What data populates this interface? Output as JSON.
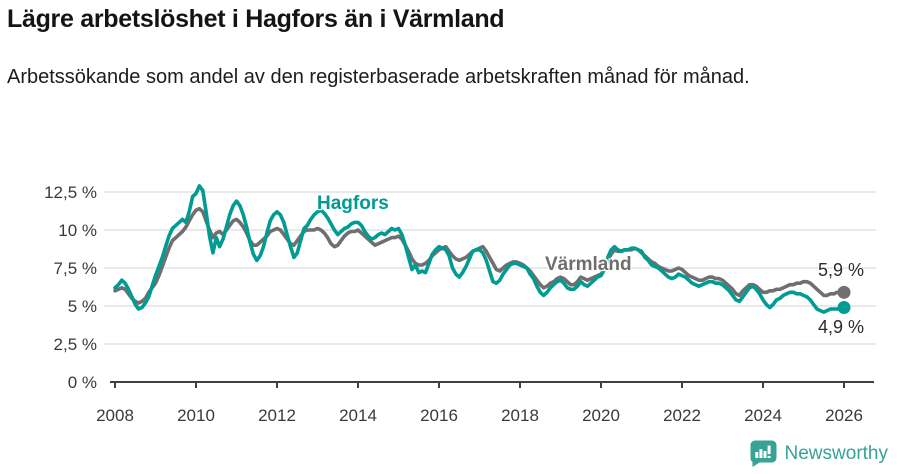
{
  "header": {
    "title": "Lägre arbetslöshet i Hagfors än i Värmland",
    "subtitle": "Arbetssökande som andel av den registerbaserade arbetskraften månad för månad."
  },
  "footer": {
    "brand": "Newsworthy"
  },
  "colors": {
    "hagfors": "#009b92",
    "varmland": "#6f6f6f",
    "grid": "#dcdcdc",
    "axis": "#404040",
    "brand_teal": "#38a294"
  },
  "chart_data": {
    "type": "line",
    "title": "Lägre arbetslöshet i Hagfors än i Värmland",
    "subtitle": "Arbetssökande som andel av den registerbaserade arbetskraften månad för månad.",
    "x_unit": "year-month",
    "x_start": 2008,
    "x_step": 0.08333,
    "xlim": [
      2008,
      2026.7
    ],
    "ylim": [
      0,
      13.5
    ],
    "grid": true,
    "legend_position": "inline-labels",
    "xticks": [
      {
        "value": 2008,
        "label": "2008"
      },
      {
        "value": 2010,
        "label": "2010"
      },
      {
        "value": 2012,
        "label": "2012"
      },
      {
        "value": 2014,
        "label": "2014"
      },
      {
        "value": 2016,
        "label": "2016"
      },
      {
        "value": 2018,
        "label": "2018"
      },
      {
        "value": 2020,
        "label": "2020"
      },
      {
        "value": 2022,
        "label": "2022"
      },
      {
        "value": 2024,
        "label": "2024"
      },
      {
        "value": 2026,
        "label": "2026"
      }
    ],
    "yticks": [
      {
        "value": 0,
        "label": "0 %"
      },
      {
        "value": 2.5,
        "label": "2,5 %"
      },
      {
        "value": 5,
        "label": "5 %"
      },
      {
        "value": 7.5,
        "label": "7,5 %"
      },
      {
        "value": 10,
        "label": "10 %"
      },
      {
        "value": 12.5,
        "label": "12,5 %"
      }
    ],
    "series": [
      {
        "name": "Hagfors",
        "color": "#009b92",
        "end_label": "4,9 %",
        "values": [
          6.2,
          6.4,
          6.7,
          6.5,
          6.1,
          5.6,
          5.1,
          4.8,
          4.9,
          5.2,
          5.6,
          6.3,
          7.0,
          7.6,
          8.2,
          8.9,
          9.6,
          10.1,
          10.3,
          10.5,
          10.7,
          10.5,
          11.2,
          12.2,
          12.4,
          12.9,
          12.6,
          11.2,
          9.6,
          8.5,
          9.5,
          8.9,
          9.4,
          10.2,
          11.0,
          11.6,
          11.9,
          11.6,
          11.0,
          10.2,
          9.2,
          8.4,
          8.0,
          8.3,
          8.9,
          9.8,
          10.6,
          11.0,
          11.2,
          11.0,
          10.5,
          9.7,
          8.9,
          8.2,
          8.5,
          9.3,
          10.1,
          10.3,
          10.7,
          11.0,
          11.2,
          11.3,
          11.1,
          10.8,
          10.4,
          10.0,
          9.7,
          9.9,
          10.1,
          10.2,
          10.4,
          10.5,
          10.5,
          10.3,
          9.9,
          9.6,
          9.4,
          9.5,
          9.7,
          9.8,
          9.7,
          9.9,
          10.1,
          10.0,
          10.1,
          9.7,
          9.0,
          8.2,
          7.4,
          7.7,
          7.2,
          7.3,
          7.2,
          7.8,
          8.4,
          8.7,
          8.9,
          8.8,
          8.7,
          8.3,
          7.5,
          7.1,
          6.9,
          7.2,
          7.6,
          8.1,
          8.6,
          8.7,
          8.7,
          8.5,
          8.0,
          7.3,
          6.6,
          6.5,
          6.7,
          7.1,
          7.4,
          7.7,
          7.8,
          7.8,
          7.7,
          7.6,
          7.5,
          7.1,
          6.8,
          6.3,
          5.9,
          5.7,
          5.9,
          6.2,
          6.4,
          6.6,
          6.7,
          6.5,
          6.2,
          6.1,
          6.1,
          6.3,
          6.6,
          6.4,
          6.3,
          6.5,
          6.7,
          6.9,
          7.0,
          7.4,
          8.2,
          8.7,
          8.9,
          8.7,
          8.6,
          8.7,
          8.7,
          8.8,
          8.8,
          8.7,
          8.6,
          8.2,
          8.0,
          7.7,
          7.6,
          7.5,
          7.3,
          7.1,
          6.9,
          6.8,
          6.9,
          7.1,
          7.0,
          6.9,
          6.7,
          6.5,
          6.4,
          6.3,
          6.4,
          6.5,
          6.6,
          6.6,
          6.5,
          6.5,
          6.4,
          6.2,
          6.0,
          5.7,
          5.4,
          5.3,
          5.6,
          5.9,
          6.2,
          6.3,
          6.1,
          5.8,
          5.4,
          5.1,
          4.9,
          5.1,
          5.4,
          5.5,
          5.7,
          5.8,
          5.9,
          5.9,
          5.8,
          5.8,
          5.7,
          5.6,
          5.4,
          5.1,
          4.8,
          4.7,
          4.6,
          4.7,
          4.8,
          4.8,
          4.8,
          4.8,
          4.9
        ]
      },
      {
        "name": "Värmland",
        "color": "#6f6f6f",
        "end_label": "5,9 %",
        "values": [
          6.0,
          6.1,
          6.2,
          6.1,
          5.8,
          5.5,
          5.3,
          5.2,
          5.3,
          5.5,
          5.9,
          6.2,
          6.5,
          7.0,
          7.6,
          8.2,
          8.8,
          9.3,
          9.5,
          9.7,
          9.9,
          10.2,
          10.6,
          11.0,
          11.3,
          11.4,
          11.2,
          10.6,
          10.0,
          9.5,
          9.8,
          9.9,
          9.7,
          10.0,
          10.3,
          10.6,
          10.7,
          10.5,
          10.2,
          9.8,
          9.3,
          9.0,
          9.0,
          9.2,
          9.4,
          9.6,
          9.9,
          10.0,
          10.1,
          10.0,
          9.7,
          9.4,
          9.1,
          9.0,
          9.3,
          9.6,
          9.9,
          10.0,
          10.0,
          10.0,
          10.1,
          10.0,
          9.8,
          9.5,
          9.1,
          8.9,
          9.0,
          9.3,
          9.6,
          9.8,
          9.9,
          9.9,
          10.0,
          9.8,
          9.6,
          9.4,
          9.2,
          9.0,
          9.1,
          9.2,
          9.3,
          9.4,
          9.5,
          9.5,
          9.6,
          9.4,
          9.0,
          8.6,
          8.1,
          7.8,
          7.7,
          7.7,
          7.8,
          8.0,
          8.3,
          8.5,
          8.7,
          8.8,
          8.9,
          8.6,
          8.3,
          8.1,
          8.0,
          8.1,
          8.2,
          8.4,
          8.6,
          8.7,
          8.8,
          8.9,
          8.6,
          8.2,
          7.8,
          7.4,
          7.3,
          7.5,
          7.7,
          7.8,
          7.9,
          7.9,
          7.8,
          7.7,
          7.5,
          7.3,
          7.0,
          6.7,
          6.4,
          6.2,
          6.3,
          6.5,
          6.6,
          6.8,
          6.9,
          6.8,
          6.6,
          6.4,
          6.4,
          6.6,
          6.9,
          6.8,
          6.7,
          6.8,
          6.9,
          7.0,
          7.1,
          7.4,
          8.0,
          8.4,
          8.7,
          8.6,
          8.6,
          8.7,
          8.7,
          8.7,
          8.8,
          8.7,
          8.5,
          8.3,
          8.1,
          7.9,
          7.8,
          7.6,
          7.5,
          7.4,
          7.3,
          7.3,
          7.4,
          7.5,
          7.4,
          7.2,
          7.0,
          6.9,
          6.8,
          6.7,
          6.7,
          6.8,
          6.9,
          6.9,
          6.8,
          6.8,
          6.7,
          6.5,
          6.3,
          6.1,
          5.8,
          5.7,
          6.0,
          6.2,
          6.4,
          6.4,
          6.3,
          6.1,
          5.9,
          5.9,
          6.0,
          6.0,
          6.1,
          6.1,
          6.2,
          6.3,
          6.4,
          6.4,
          6.5,
          6.5,
          6.6,
          6.6,
          6.5,
          6.3,
          6.1,
          5.9,
          5.7,
          5.7,
          5.8,
          5.8,
          5.9,
          5.9,
          5.9
        ]
      }
    ]
  }
}
